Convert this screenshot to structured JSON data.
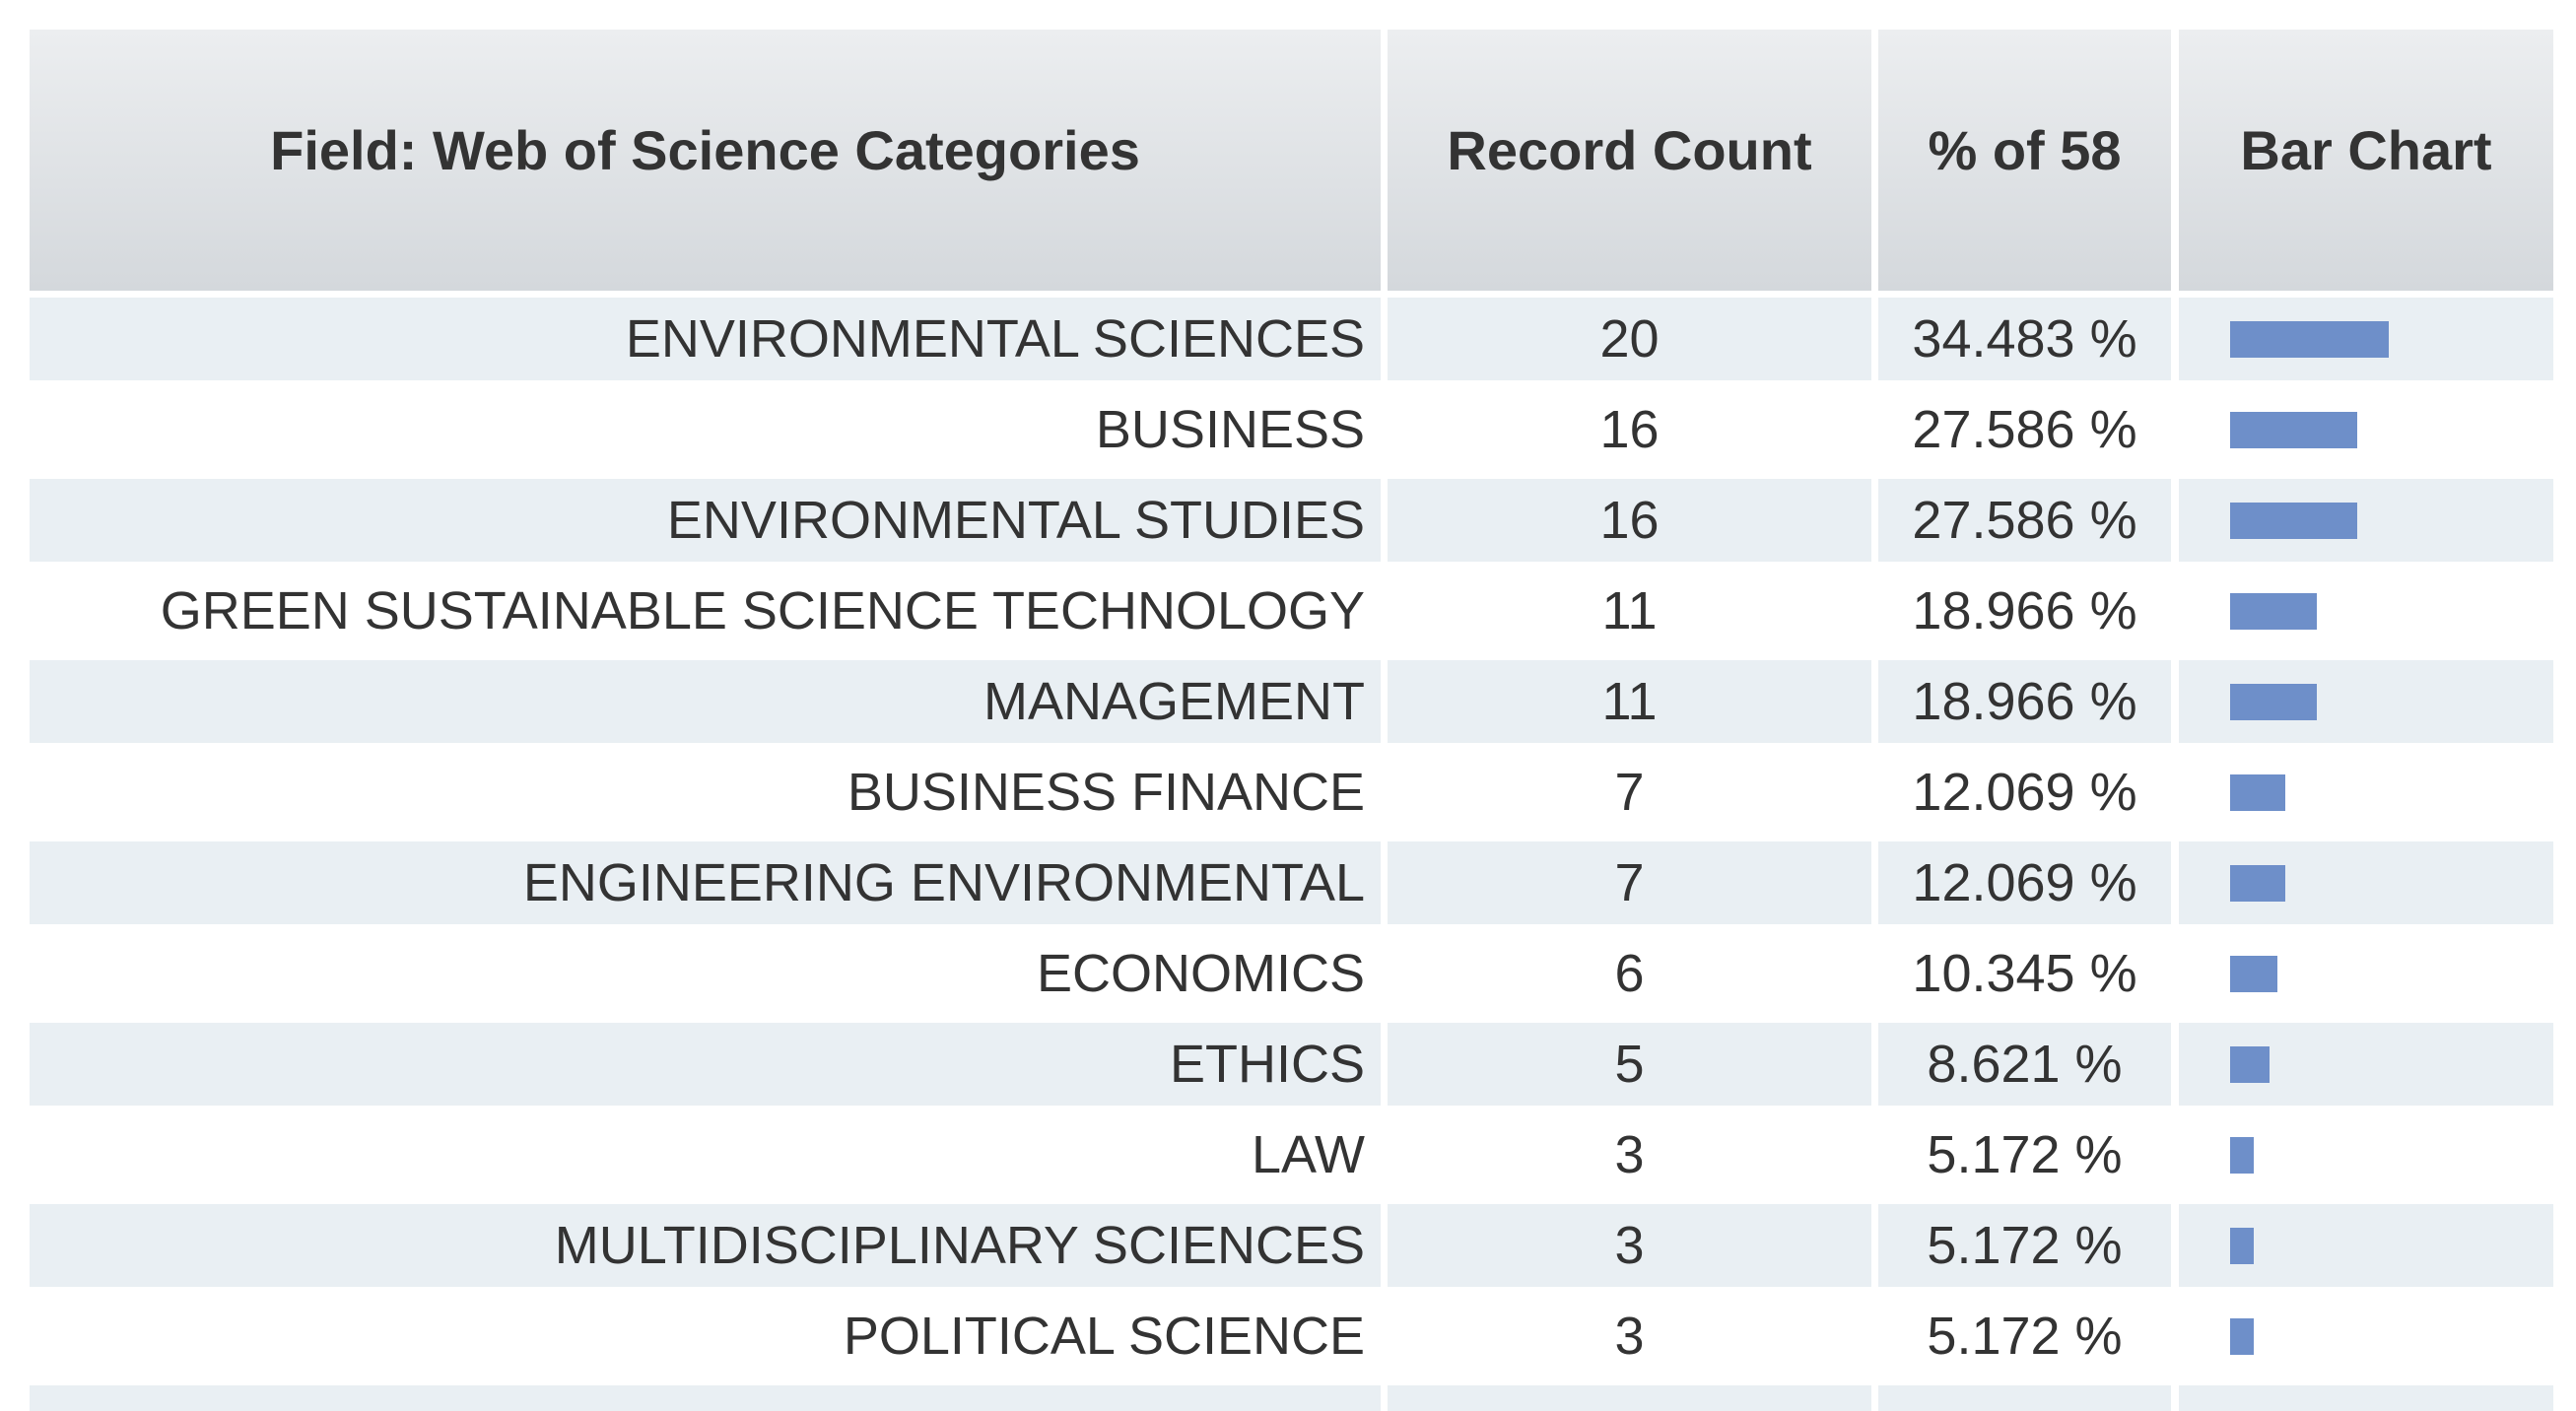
{
  "header": {
    "category": "Field: Web of Science Categories",
    "count": "Record Count",
    "percent": "% of 58",
    "bar": "Bar Chart"
  },
  "table": {
    "rows": [
      {
        "category": "ENVIRONMENTAL SCIENCES",
        "count": 20,
        "percent": "34.483 %"
      },
      {
        "category": "BUSINESS",
        "count": 16,
        "percent": "27.586 %"
      },
      {
        "category": "ENVIRONMENTAL STUDIES",
        "count": 16,
        "percent": "27.586 %"
      },
      {
        "category": "GREEN SUSTAINABLE SCIENCE TECHNOLOGY",
        "count": 11,
        "percent": "18.966 %"
      },
      {
        "category": "MANAGEMENT",
        "count": 11,
        "percent": "18.966 %"
      },
      {
        "category": "BUSINESS FINANCE",
        "count": 7,
        "percent": "12.069 %"
      },
      {
        "category": "ENGINEERING ENVIRONMENTAL",
        "count": 7,
        "percent": "12.069 %"
      },
      {
        "category": "ECONOMICS",
        "count": 6,
        "percent": "10.345 %"
      },
      {
        "category": "ETHICS",
        "count": 5,
        "percent": "8.621 %"
      },
      {
        "category": "LAW",
        "count": 3,
        "percent": "5.172 %"
      },
      {
        "category": "MULTIDISCIPLINARY SCIENCES",
        "count": 3,
        "percent": "5.172 %"
      },
      {
        "category": "POLITICAL SCIENCE",
        "count": 3,
        "percent": "5.172 %"
      }
    ]
  }
}
